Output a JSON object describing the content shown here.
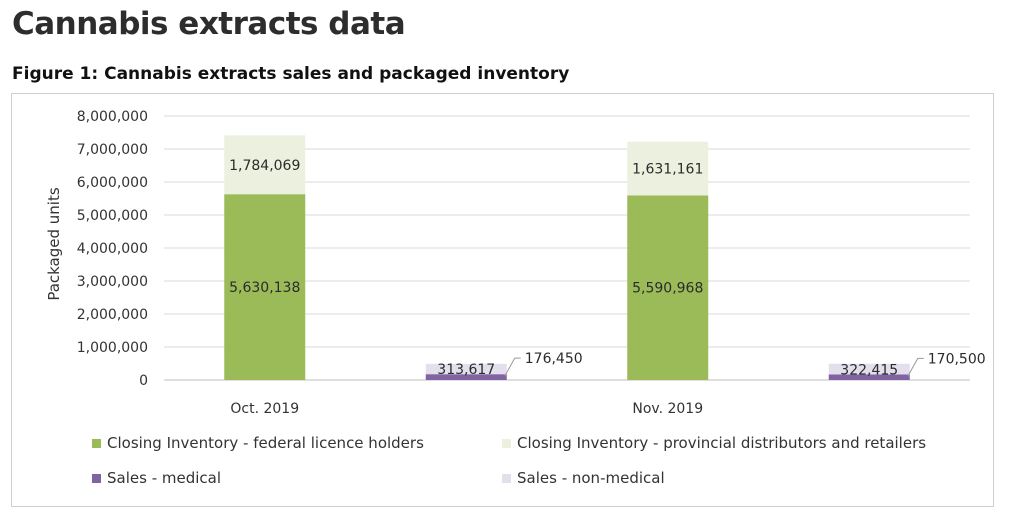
{
  "page_title": "Cannabis extracts data",
  "figure_title": "Figure 1: Cannabis extracts sales and packaged inventory",
  "colors": {
    "fed": "#9bbb59",
    "prov": "#ebf1de",
    "med": "#8064a2",
    "nonmed": "#e4dfec"
  },
  "chart_data": {
    "type": "bar",
    "stacked": true,
    "title": "Figure 1: Cannabis extracts sales and packaged inventory",
    "ylabel": "Packaged units",
    "xlabel": "",
    "ylim": [
      0,
      8000000
    ],
    "yticks": [
      "0",
      "1,000,000",
      "2,000,000",
      "3,000,000",
      "4,000,000",
      "5,000,000",
      "6,000,000",
      "7,000,000",
      "8,000,000"
    ],
    "grid": true,
    "legend_position": "bottom",
    "categories": [
      "Oct. 2019",
      "Nov. 2019"
    ],
    "series": [
      {
        "name": "Closing Inventory - federal licence holders",
        "values": [
          5630138,
          5590968
        ],
        "labels": [
          "5,630,138",
          "5,590,968"
        ],
        "color": "#9bbb59"
      },
      {
        "name": "Closing Inventory - provincial distributors and retailers",
        "values": [
          1784069,
          1631161
        ],
        "labels": [
          "1,784,069",
          "1,631,161"
        ],
        "color": "#ebf1de"
      },
      {
        "name": "Sales - medical",
        "values": [
          176450,
          170500
        ],
        "labels": [
          "176,450",
          "170,500"
        ],
        "color": "#8064a2"
      },
      {
        "name": "Sales - non-medical",
        "values": [
          313617,
          322415
        ],
        "labels": [
          "313,617",
          "322,415"
        ],
        "color": "#e4dfec"
      }
    ]
  }
}
